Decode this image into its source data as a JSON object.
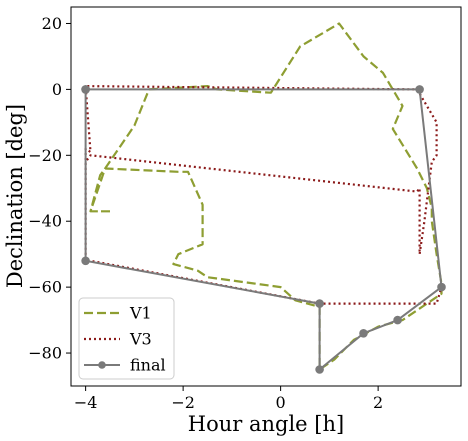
{
  "chart_data": {
    "type": "line",
    "xlabel": "Hour angle [h]",
    "ylabel": "Declination [deg]",
    "xlim": [
      -4.3,
      3.7
    ],
    "ylim": [
      -90,
      25
    ],
    "xticks": [
      -4,
      -2,
      0,
      2
    ],
    "yticks": [
      20,
      0,
      -20,
      -40,
      -60,
      -80
    ],
    "xtick_labels": [
      "−4",
      "−2",
      "0",
      "2"
    ],
    "ytick_labels": [
      "20",
      "0",
      "−20",
      "−40",
      "−60",
      "−80"
    ],
    "grid": false,
    "legend_position": "lower-left",
    "series": [
      {
        "name": "V1",
        "color": "#8e9e32",
        "style": "dashed",
        "marker": "none",
        "x": [
          -3.5,
          -3.9,
          -3.7,
          -3.6,
          -3.0,
          -2.7,
          -1.5,
          -1.3,
          -0.2,
          0.4,
          1.2,
          1.7,
          2.1,
          2.5,
          2.3,
          2.8,
          3.0,
          3.1,
          3.1,
          3.2,
          3.3,
          3.3,
          3.1,
          2.5,
          2.0,
          1.5,
          1.1,
          0.8,
          0.8,
          0.3,
          0.0,
          -0.5,
          -1.5,
          -1.7,
          -2.2,
          -2.1,
          -1.6,
          -1.6,
          -1.9,
          -2.1,
          -3.6,
          -3.9,
          -3.5
        ],
        "y": [
          -37,
          -37,
          -26,
          -24,
          -11,
          0,
          1,
          0,
          -1,
          13,
          20,
          10,
          5,
          -5,
          -12,
          -24,
          -30,
          -36,
          -40,
          -50,
          -59,
          -62,
          -64,
          -70,
          -72,
          -76,
          -82,
          -85,
          -66,
          -64,
          -60,
          -59,
          -57,
          -55,
          -53,
          -50,
          -47,
          -35,
          -25,
          -25,
          -24,
          -37,
          -37
        ]
      },
      {
        "name": "V3",
        "color": "#8b1a1a",
        "style": "dotted",
        "marker": "none",
        "x": [
          -4.0,
          -4.0,
          -3.9,
          -4.0,
          2.8,
          3.2,
          3.2,
          3.1,
          3.05,
          2.95,
          2.9,
          2.85,
          2.85,
          2.8,
          -3.9,
          -4.0,
          -4.0,
          -4.0,
          -4.0,
          -4.0,
          -4.0,
          -3.9,
          0.8,
          3.2,
          3.3
        ],
        "y": [
          -29,
          -18,
          -19,
          1,
          0,
          -10,
          -20,
          -22,
          -28,
          -40,
          -45,
          -50,
          -30,
          -31,
          -20,
          -22,
          -27,
          -30,
          -35,
          -40,
          -52,
          -52,
          -65,
          -65,
          -60
        ]
      },
      {
        "name": "final",
        "color": "#7a7a7a",
        "style": "solid",
        "marker": "circle",
        "x": [
          -4.0,
          2.85,
          3.3,
          2.4,
          1.7,
          0.8,
          0.8,
          -4.0,
          -4.0
        ],
        "y": [
          0,
          0,
          -60,
          -70,
          -74,
          -85,
          -65,
          -52,
          0
        ]
      }
    ]
  }
}
